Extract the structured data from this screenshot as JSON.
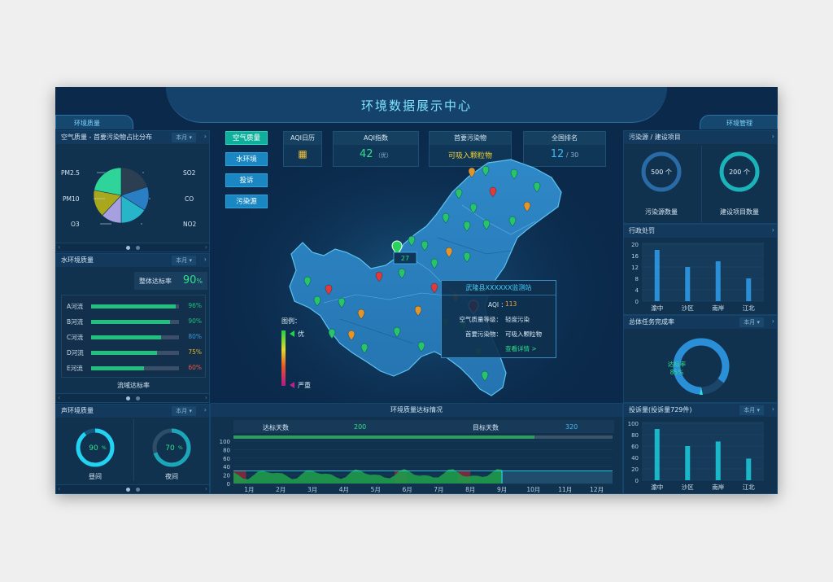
{
  "title": "环境数据展示中心",
  "left_tab": "环境质量",
  "right_tab": "环境管理",
  "air_panel": {
    "title": "空气质量 - 首要污染物占比分布",
    "select": "本月",
    "pie": [
      {
        "label": "PM2.5",
        "value": 20,
        "color": "#2b3e52"
      },
      {
        "label": "SO2",
        "value": 14,
        "color": "#2a7fc4"
      },
      {
        "label": "CO",
        "value": 16,
        "color": "#26b5c9"
      },
      {
        "label": "NO2",
        "value": 12,
        "color": "#a7a0e0"
      },
      {
        "label": "O3",
        "value": 16,
        "color": "#a9a81d"
      },
      {
        "label": "PM10",
        "value": 22,
        "color": "#2ed49a"
      }
    ]
  },
  "water_panel": {
    "title": "水环境质量",
    "select": "本月",
    "overall_label": "整体达标率",
    "overall_value": "90",
    "overall_unit": "%",
    "rows": [
      {
        "name": "A河流",
        "value": 96,
        "text": "96%",
        "color": "#22c07e"
      },
      {
        "name": "B河流",
        "value": 90,
        "text": "90%",
        "color": "#22c07e"
      },
      {
        "name": "C河流",
        "value": 80,
        "text": "80%",
        "color": "#3a96d6"
      },
      {
        "name": "D河流",
        "value": 75,
        "text": "75%",
        "color": "#e6b52a"
      },
      {
        "name": "E河流",
        "value": 60,
        "text": "60%",
        "color": "#e05a4a"
      }
    ],
    "footer": "流域达标率"
  },
  "noise_panel": {
    "title": "声环境质量",
    "select": "本月",
    "day": {
      "value": 90,
      "text": "90",
      "unit": "%",
      "label": "昼间"
    },
    "night": {
      "value": 70,
      "text": "70",
      "unit": "%",
      "label": "夜间"
    }
  },
  "nav_tabs": [
    "空气质量",
    "水环境",
    "投诉",
    "污染源"
  ],
  "stats": {
    "aqi_calendar": {
      "title": "AQI日历"
    },
    "aqi_index": {
      "title": "AQI指数",
      "value": "42",
      "sub": "（优）"
    },
    "primary_pollutant": {
      "title": "首要污染物",
      "value": "可吸入颗粒物"
    },
    "national_rank": {
      "title": "全国排名",
      "value": "12",
      "total": "/ 30"
    }
  },
  "map": {
    "label_a": "27",
    "label_b": "113",
    "legend_title": "图例：",
    "legend_top": "优",
    "legend_bottom": "严重",
    "popup": {
      "title": "武隆县XXXXXX监测站",
      "aqi_label": "AQI ：",
      "aqi_value": "113",
      "level_label": "空气质量等级：",
      "level_value": "轻度污染",
      "pollutant_label": "首要污染物：",
      "pollutant_value": "可吸入颗粒物",
      "link": "查看详情 >"
    }
  },
  "compliance_panel": {
    "title": "环境质量达标情况",
    "days_label": "达标天数",
    "days_value": "200",
    "target_label": "目标天数",
    "target_value": "320",
    "chart_data": {
      "type": "area",
      "categories": [
        "1月",
        "2月",
        "3月",
        "4月",
        "5月",
        "6月",
        "7月",
        "8月",
        "9月",
        "10月",
        "11月",
        "12月"
      ],
      "ylim": [
        0,
        100
      ],
      "yticks": [
        "100",
        "80",
        "60",
        "40",
        "20",
        "0"
      ]
    }
  },
  "pollution_panel": {
    "title": "污染源 / 建设项目",
    "left": {
      "value": "500 个",
      "label": "污染源数量"
    },
    "right": {
      "value": "200 个",
      "label": "建设项目数量"
    }
  },
  "penalty_panel": {
    "title": "行政处罚",
    "chart_data": {
      "type": "bar",
      "categories": [
        "渝中",
        "沙区",
        "南岸",
        "江北"
      ],
      "values": [
        18,
        12,
        14,
        8
      ],
      "ylim": [
        0,
        20
      ],
      "yticks": [
        "20",
        "16",
        "12",
        "8",
        "4",
        "0"
      ]
    }
  },
  "task_panel": {
    "title": "总体任务完成率",
    "select": "本月",
    "label": "达标率",
    "value": 85,
    "text": "85%"
  },
  "complaint_panel": {
    "title": "投诉量(投诉量729件)",
    "select": "本月",
    "chart_data": {
      "type": "bar",
      "categories": [
        "渝中",
        "沙区",
        "南岸",
        "江北"
      ],
      "values": [
        90,
        60,
        68,
        38
      ],
      "ylim": [
        0,
        100
      ],
      "yticks": [
        "100",
        "80",
        "60",
        "40",
        "20",
        "0"
      ]
    }
  }
}
